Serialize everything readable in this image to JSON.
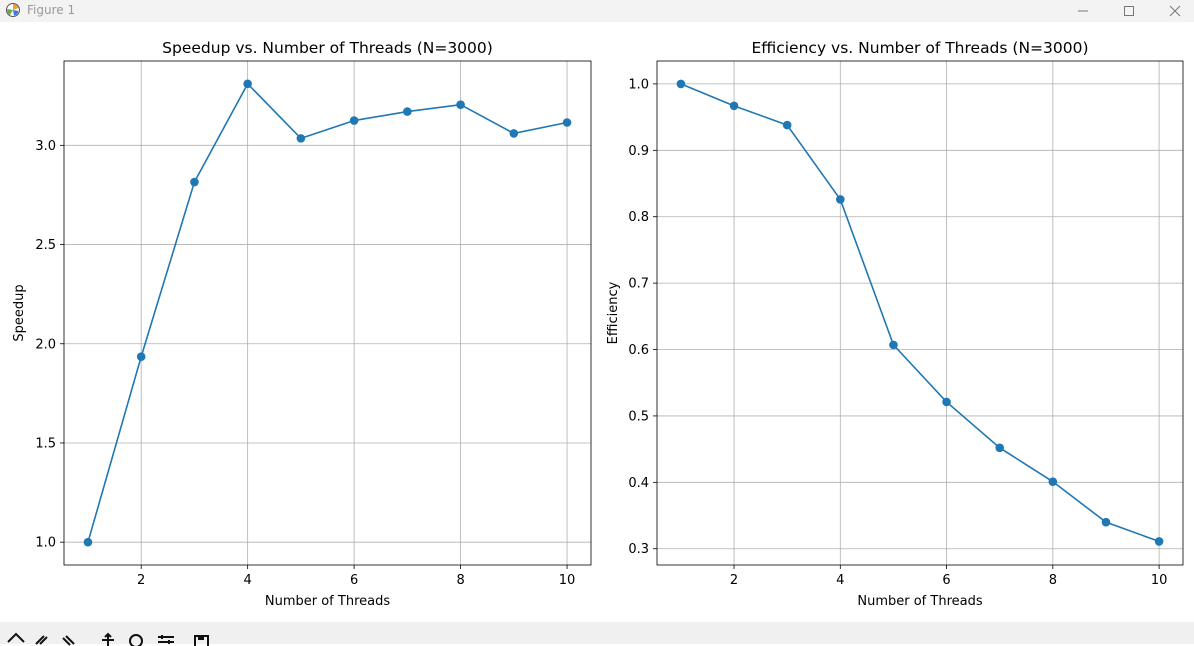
{
  "window": {
    "title": "Figure 1",
    "icon": "matplotlib-icon"
  },
  "window_controls": [
    "minimize-icon",
    "maximize-icon",
    "close-icon"
  ],
  "toolbar_icons": [
    "home-icon",
    "back-icon",
    "forward-icon",
    "pan-icon",
    "zoom-icon",
    "configure-subplots-icon",
    "save-icon"
  ],
  "colors": {
    "series": "#1f77b4",
    "grid": "#b0b0b0",
    "axes": "#000000"
  },
  "chart_data": [
    {
      "type": "line",
      "title": "Speedup vs. Number of Threads (N=3000)",
      "xlabel": "Number of Threads",
      "ylabel": "Speedup",
      "x": [
        1,
        2,
        3,
        4,
        5,
        6,
        7,
        8,
        9,
        10
      ],
      "series": [
        {
          "values": [
            1.0,
            1.935,
            2.815,
            3.31,
            3.035,
            3.125,
            3.17,
            3.205,
            3.06,
            3.115
          ]
        }
      ],
      "xlim": [
        0.55,
        10.45
      ],
      "ylim": [
        0.885,
        3.425
      ],
      "xticks": [
        2,
        4,
        6,
        8,
        10
      ],
      "yticks": [
        1.0,
        1.5,
        2.0,
        2.5,
        3.0
      ],
      "xticklabels": [
        "2",
        "4",
        "6",
        "8",
        "10"
      ],
      "yticklabels": [
        "1.0",
        "1.5",
        "2.0",
        "2.5",
        "3.0"
      ],
      "grid": true,
      "marker": "circle"
    },
    {
      "type": "line",
      "title": "Efficiency vs. Number of Threads (N=3000)",
      "xlabel": "Number of Threads",
      "ylabel": "Efficiency",
      "x": [
        1,
        2,
        3,
        4,
        5,
        6,
        7,
        8,
        9,
        10
      ],
      "series": [
        {
          "values": [
            1.0,
            0.967,
            0.938,
            0.826,
            0.607,
            0.521,
            0.452,
            0.401,
            0.34,
            0.311
          ]
        }
      ],
      "xlim": [
        0.55,
        10.45
      ],
      "ylim": [
        0.2755,
        1.0345
      ],
      "xticks": [
        2,
        4,
        6,
        8,
        10
      ],
      "yticks": [
        0.3,
        0.4,
        0.5,
        0.6,
        0.7,
        0.8,
        0.9,
        1.0
      ],
      "xticklabels": [
        "2",
        "4",
        "6",
        "8",
        "10"
      ],
      "yticklabels": [
        "0.3",
        "0.4",
        "0.5",
        "0.6",
        "0.7",
        "0.8",
        "0.9",
        "1.0"
      ],
      "grid": true,
      "marker": "circle"
    }
  ]
}
